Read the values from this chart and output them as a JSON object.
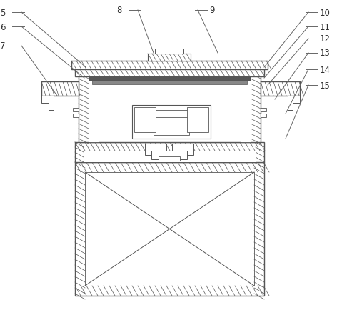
{
  "bg_color": "#ffffff",
  "lc": "#555555",
  "lc_dark": "#333333",
  "dot_fill": "#d0d8e8",
  "hatch_fill": "#e8e8e8",
  "figsize": [
    4.79,
    4.35
  ],
  "dpi": 100
}
